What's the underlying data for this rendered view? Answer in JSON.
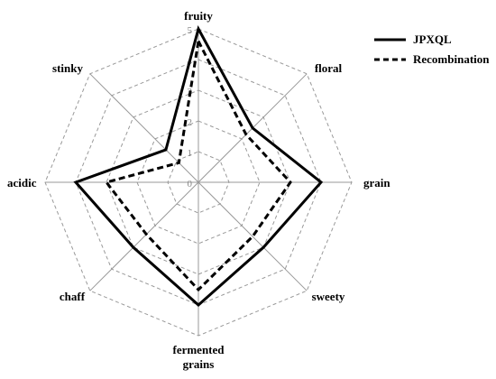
{
  "chart_data": {
    "type": "radar",
    "axes": [
      "fruity",
      "floral",
      "grain",
      "sweety",
      "fermented grains",
      "chaff",
      "acidic",
      "stinky"
    ],
    "axis_label_lines": [
      [
        "fruity"
      ],
      [
        "floral"
      ],
      [
        "grain"
      ],
      [
        "sweety"
      ],
      [
        "fermented",
        "grains"
      ],
      [
        "chaff"
      ],
      [
        "acidic"
      ],
      [
        "stinky"
      ]
    ],
    "rlim": [
      0,
      5
    ],
    "ticks": [
      "0",
      "1",
      "2",
      "3",
      "4",
      "5"
    ],
    "series": [
      {
        "name": "JPXQL",
        "values": [
          5,
          2.5,
          4,
          3,
          4,
          3,
          4,
          1.5
        ],
        "style": "solid",
        "color": "#000000"
      },
      {
        "name": "Recombination",
        "values": [
          4.6,
          2.2,
          3,
          2.5,
          3.5,
          2.4,
          3,
          0.9
        ],
        "style": "dashed",
        "color": "#000000"
      }
    ],
    "grid": true,
    "legend_position": "top-right"
  }
}
